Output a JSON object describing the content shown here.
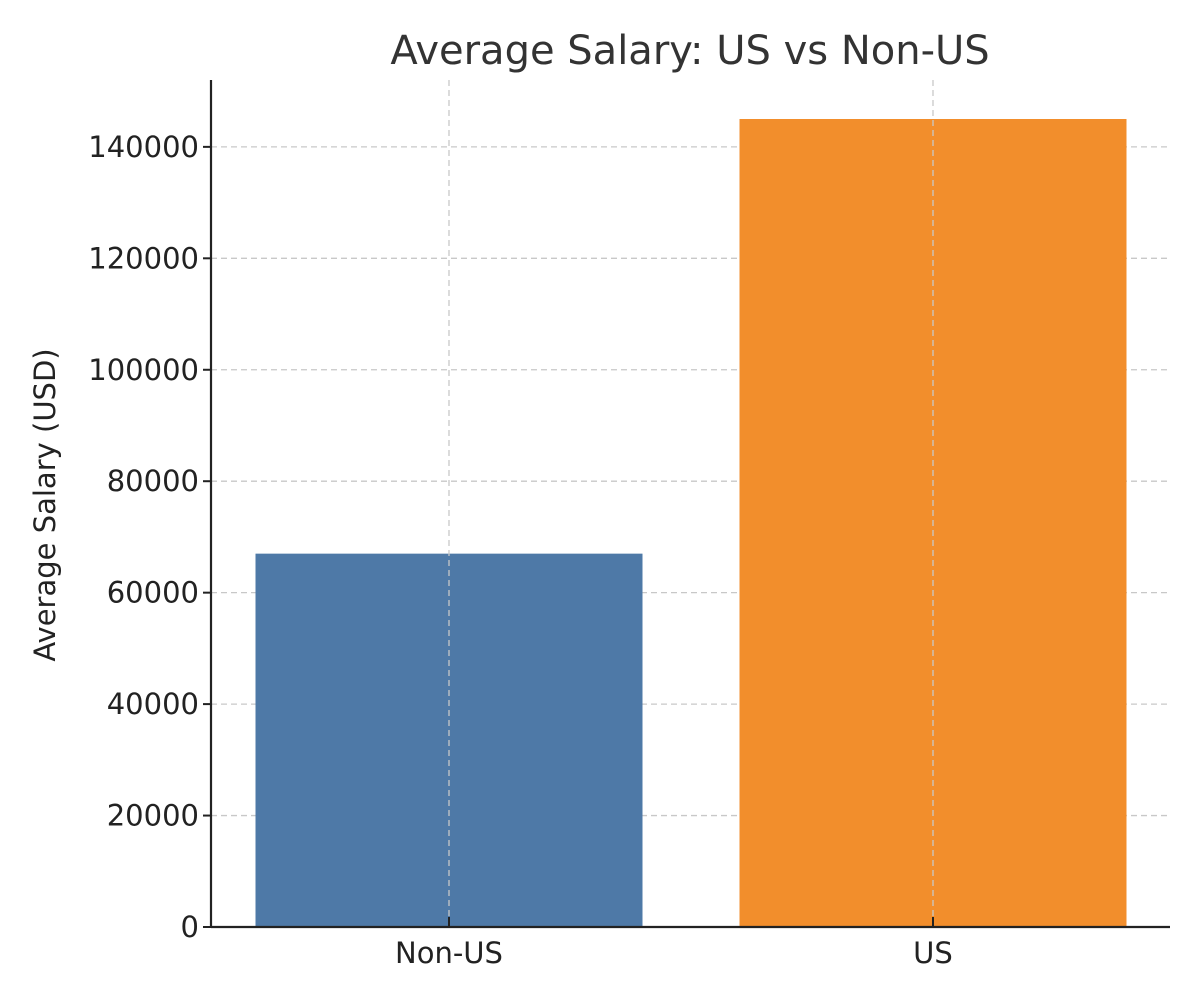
{
  "chart_data": {
    "type": "bar",
    "title": "Average Salary: US vs Non-US",
    "xlabel": "",
    "ylabel": "Average Salary (USD)",
    "categories": [
      "Non-US",
      "US"
    ],
    "values": [
      67000,
      145000
    ],
    "colors": [
      "#4e79a7",
      "#f28e2c"
    ],
    "ylim": [
      0,
      152000
    ],
    "yticks": [
      0,
      20000,
      40000,
      60000,
      80000,
      100000,
      120000,
      140000
    ],
    "ytick_labels": [
      "0",
      "20000",
      "40000",
      "60000",
      "80000",
      "100000",
      "120000",
      "140000"
    ],
    "grid": true,
    "legend": "none"
  }
}
